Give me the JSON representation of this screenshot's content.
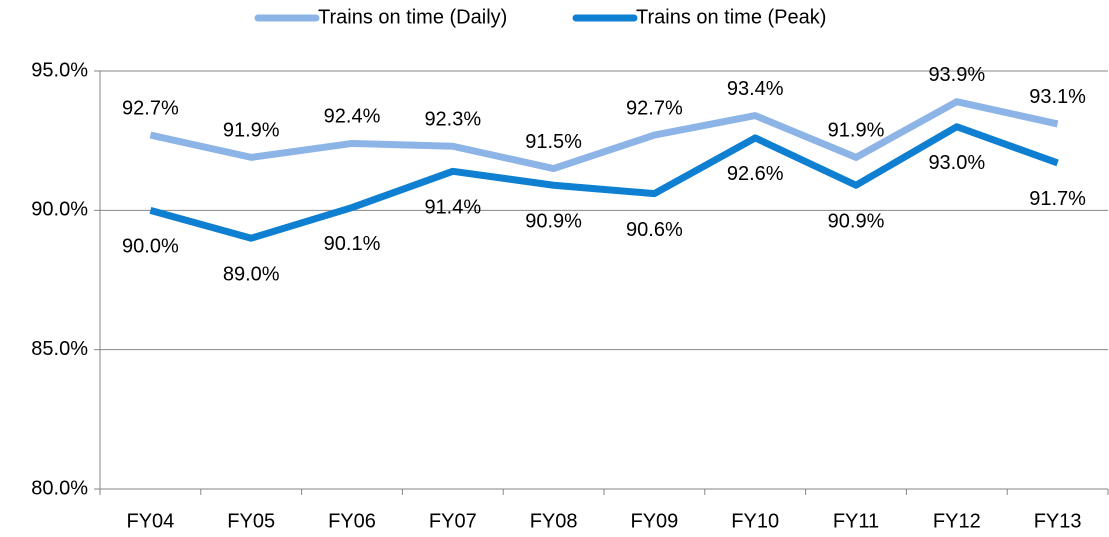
{
  "chart_data": {
    "type": "line",
    "categories": [
      "FY04",
      "FY05",
      "FY06",
      "FY07",
      "FY08",
      "FY09",
      "FY10",
      "FY11",
      "FY12",
      "FY13"
    ],
    "series": [
      {
        "name": "Trains on time (Daily)",
        "color": "#8db4e6",
        "values": [
          92.7,
          91.9,
          92.4,
          92.3,
          91.5,
          92.7,
          93.4,
          91.9,
          93.9,
          93.1
        ],
        "value_labels": [
          "92.7%",
          "91.9%",
          "92.4%",
          "92.3%",
          "91.5%",
          "92.7%",
          "93.4%",
          "91.9%",
          "93.9%",
          "93.1%"
        ]
      },
      {
        "name": "Trains on time (Peak)",
        "color": "#0f7fd2",
        "values": [
          90.0,
          89.0,
          90.1,
          91.4,
          90.9,
          90.6,
          92.6,
          90.9,
          93.0,
          91.7
        ],
        "value_labels": [
          "90.0%",
          "89.0%",
          "90.1%",
          "91.4%",
          "90.9%",
          "90.6%",
          "92.6%",
          "90.9%",
          "93.0%",
          "91.7%"
        ]
      }
    ],
    "ylim": [
      80,
      95
    ],
    "yticks": [
      {
        "value": 80,
        "label": "80.0%"
      },
      {
        "value": 85,
        "label": "85.0%"
      },
      {
        "value": 90,
        "label": "90.0%"
      },
      {
        "value": 95,
        "label": "95.0%"
      }
    ],
    "grid": true,
    "legend": "top"
  }
}
